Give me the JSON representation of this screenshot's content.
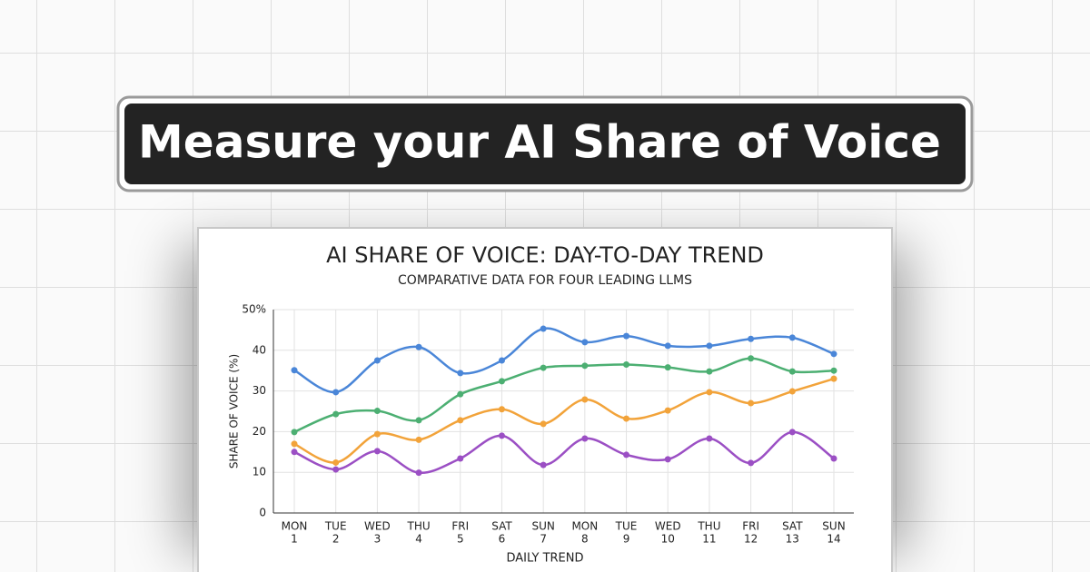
{
  "headline": "Measure your AI Share of Voice",
  "chart_data": {
    "type": "line",
    "title": "AI SHARE OF VOICE: DAY-TO-DAY TREND",
    "subtitle": "COMPARATIVE DATA FOR FOUR LEADING LLMS",
    "x_label": "DAILY TREND",
    "y_label": "SHARE OF VOICE (%)",
    "categories": [
      "MON",
      "TUE",
      "WED",
      "THU",
      "FRI",
      "SAT",
      "SUN",
      "MON",
      "TUE",
      "WED",
      "THU",
      "FRI",
      "SAT",
      "SUN"
    ],
    "day_numbers": [
      1,
      2,
      3,
      4,
      5,
      6,
      7,
      8,
      9,
      10,
      11,
      12,
      13,
      14
    ],
    "ylim": [
      0,
      50
    ],
    "yticks": [
      0,
      10,
      20,
      30,
      40,
      {
        "value": 50,
        "label": "50%"
      }
    ],
    "grid": true,
    "series": [
      {
        "color": "#4a86d8",
        "values": [
          35.1,
          29.7,
          37.5,
          40.8,
          34.4,
          37.5,
          45.3,
          42.0,
          43.5,
          41.1,
          41.1,
          42.8,
          43.1,
          39.1
        ]
      },
      {
        "color": "#4caf72",
        "values": [
          19.9,
          24.3,
          25.1,
          22.8,
          29.2,
          32.4,
          35.7,
          36.2,
          36.5,
          35.8,
          34.8,
          38.0,
          34.8,
          35.0
        ]
      },
      {
        "color": "#f2a33a",
        "values": [
          17.0,
          12.4,
          19.4,
          18.0,
          22.8,
          25.5,
          21.9,
          27.9,
          23.2,
          25.2,
          29.7,
          27.0,
          29.9,
          33.0
        ]
      },
      {
        "color": "#9b4fc4",
        "values": [
          15.0,
          10.7,
          15.2,
          9.9,
          13.4,
          19.0,
          11.8,
          18.3,
          14.3,
          13.2,
          18.3,
          12.3,
          19.9,
          13.4
        ]
      }
    ]
  }
}
